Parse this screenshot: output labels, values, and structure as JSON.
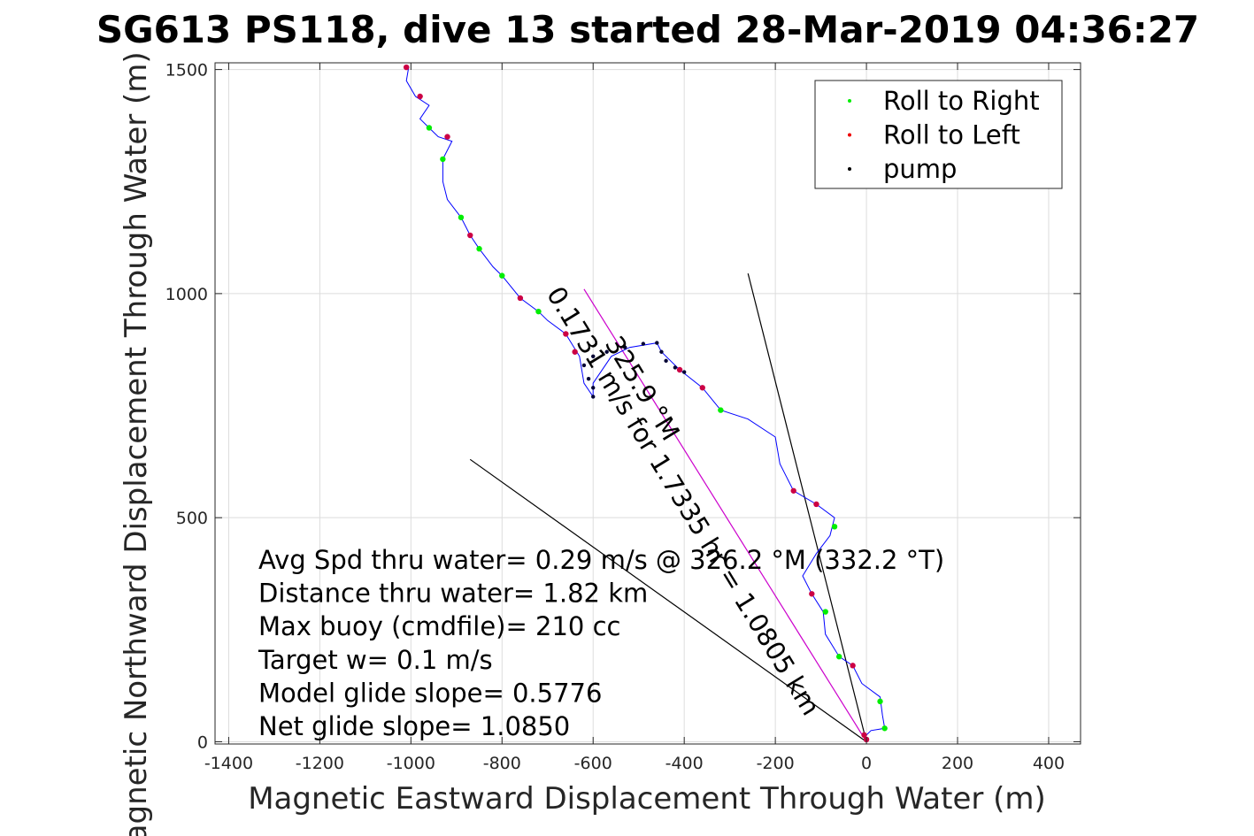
{
  "chart_data": {
    "type": "line",
    "title": "SG613 PS118, dive 13 started 28-Mar-2019 04:36:27",
    "xlabel": "Magnetic Eastward Displacement Through Water (m)",
    "ylabel": "Magnetic Northward Displacement Through Water (m)",
    "xlim": [
      -1430,
      470
    ],
    "ylim": [
      -5,
      1515
    ],
    "xticks": [
      -1400,
      -1200,
      -1000,
      -800,
      -600,
      -400,
      -200,
      0,
      200,
      400
    ],
    "yticks": [
      0,
      500,
      1000,
      1500
    ],
    "grid": true,
    "legend_position": "top-right",
    "legend": [
      {
        "label": "Roll to Right",
        "color": "#00ee00"
      },
      {
        "label": "Roll to Left",
        "color": "#ee0000"
      },
      {
        "label": "pump",
        "color": "#000000"
      }
    ],
    "colors": {
      "track": "#0000ff",
      "roll_right": "#00ee00",
      "roll_left": "#cc0044",
      "pump": "#000033",
      "heading_line": "#cc00cc",
      "lines": "#000000"
    },
    "series": [
      {
        "name": "track",
        "points": [
          [
            0,
            0
          ],
          [
            -5,
            10
          ],
          [
            10,
            25
          ],
          [
            40,
            30
          ],
          [
            35,
            60
          ],
          [
            30,
            100
          ],
          [
            -10,
            130
          ],
          [
            -30,
            170
          ],
          [
            -60,
            190
          ],
          [
            -90,
            240
          ],
          [
            -95,
            290
          ],
          [
            -120,
            330
          ],
          [
            -140,
            370
          ],
          [
            -110,
            420
          ],
          [
            -80,
            460
          ],
          [
            -70,
            500
          ],
          [
            -110,
            530
          ],
          [
            -160,
            560
          ],
          [
            -190,
            620
          ],
          [
            -200,
            680
          ],
          [
            -260,
            720
          ],
          [
            -320,
            740
          ],
          [
            -360,
            790
          ],
          [
            -410,
            830
          ],
          [
            -450,
            870
          ],
          [
            -460,
            890
          ],
          [
            -520,
            880
          ],
          [
            -560,
            860
          ],
          [
            -600,
            800
          ],
          [
            -600,
            770
          ],
          [
            -620,
            800
          ],
          [
            -630,
            860
          ],
          [
            -660,
            910
          ],
          [
            -700,
            940
          ],
          [
            -720,
            960
          ],
          [
            -760,
            990
          ],
          [
            -800,
            1040
          ],
          [
            -820,
            1060
          ],
          [
            -850,
            1100
          ],
          [
            -870,
            1130
          ],
          [
            -890,
            1170
          ],
          [
            -920,
            1210
          ],
          [
            -930,
            1250
          ],
          [
            -930,
            1300
          ],
          [
            -910,
            1340
          ],
          [
            -940,
            1350
          ],
          [
            -960,
            1370
          ],
          [
            -980,
            1390
          ],
          [
            -960,
            1420
          ],
          [
            -990,
            1440
          ],
          [
            -1010,
            1475
          ],
          [
            -1005,
            1505
          ]
        ]
      },
      {
        "name": "Roll to Right",
        "points": [
          [
            40,
            30
          ],
          [
            30,
            90
          ],
          [
            -60,
            190
          ],
          [
            -90,
            290
          ],
          [
            -70,
            480
          ],
          [
            -320,
            740
          ],
          [
            -720,
            960
          ],
          [
            -800,
            1040
          ],
          [
            -850,
            1100
          ],
          [
            -890,
            1170
          ],
          [
            -960,
            1370
          ],
          [
            -930,
            1300
          ]
        ]
      },
      {
        "name": "Roll to Left",
        "points": [
          [
            0,
            5
          ],
          [
            -5,
            15
          ],
          [
            -30,
            170
          ],
          [
            -110,
            530
          ],
          [
            -160,
            560
          ],
          [
            -120,
            330
          ],
          [
            -360,
            790
          ],
          [
            -410,
            830
          ],
          [
            -640,
            870
          ],
          [
            -660,
            910
          ],
          [
            -760,
            990
          ],
          [
            -920,
            1350
          ],
          [
            -980,
            1440
          ],
          [
            -1010,
            1505
          ],
          [
            -870,
            1130
          ]
        ]
      },
      {
        "name": "pump",
        "points": [
          [
            -600,
            770
          ],
          [
            -600,
            790
          ],
          [
            -610,
            810
          ],
          [
            -620,
            840
          ],
          [
            -600,
            860
          ],
          [
            -570,
            870
          ],
          [
            -530,
            880
          ],
          [
            -490,
            888
          ],
          [
            -460,
            890
          ],
          [
            -450,
            870
          ],
          [
            -440,
            850
          ],
          [
            -420,
            835
          ],
          [
            -400,
            825
          ]
        ]
      }
    ],
    "reference_lines": [
      {
        "name": "heading-line",
        "from": [
          0,
          0
        ],
        "to": [
          -620,
          1010
        ]
      },
      {
        "name": "bearing-line-1",
        "from": [
          0,
          0
        ],
        "to": [
          -260,
          1045
        ]
      },
      {
        "name": "bearing-line-2",
        "from": [
          0,
          0
        ],
        "to": [
          -870,
          630
        ]
      }
    ],
    "annotations": [
      "Avg Spd thru water=  0.29 m/s @ 326.2 °M (332.2 °T)",
      "Distance thru water=  1.82 km",
      "Max buoy (cmdfile)= 210 cc",
      "Target w= 0.1 m/s",
      "Model glide slope= 0.5776",
      "Net glide slope= 1.0850"
    ],
    "rotated_annotations": [
      "0.1731 m/s for 1.7335 hr = 1.0805 km",
      "325.9 °M"
    ]
  }
}
